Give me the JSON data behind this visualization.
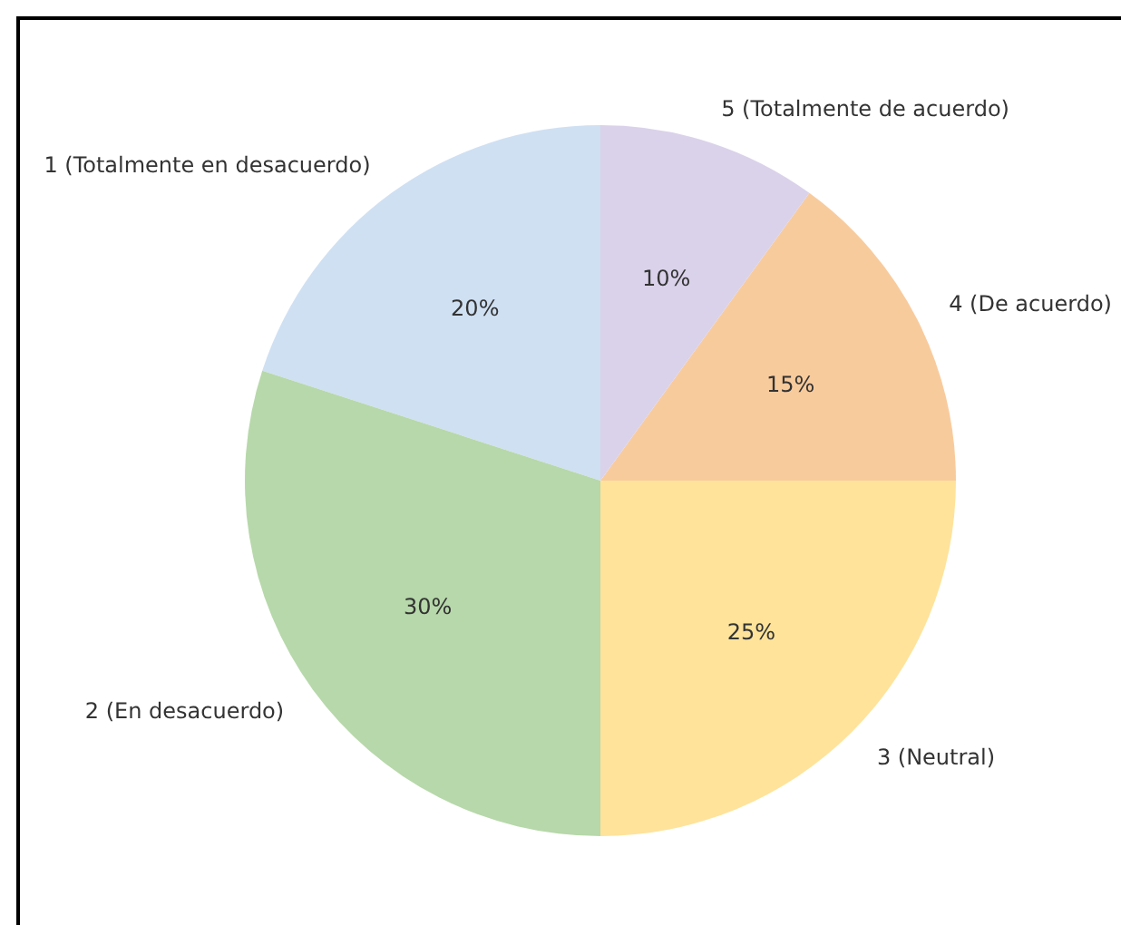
{
  "chart_data": {
    "type": "pie",
    "categories": [
      "1 (Totalmente en desacuerdo)",
      "2 (En desacuerdo)",
      "3 (Neutral)",
      "4 (De acuerdo)",
      "5 (Totalmente de acuerdo)"
    ],
    "values": [
      20,
      30,
      25,
      15,
      10
    ],
    "colors": [
      "#cfe0f3",
      "#b7d8aa",
      "#ffe39b",
      "#f8cb9d",
      "#dad2ea"
    ],
    "value_labels": [
      "20%",
      "30%",
      "25%",
      "15%",
      "10%"
    ]
  }
}
